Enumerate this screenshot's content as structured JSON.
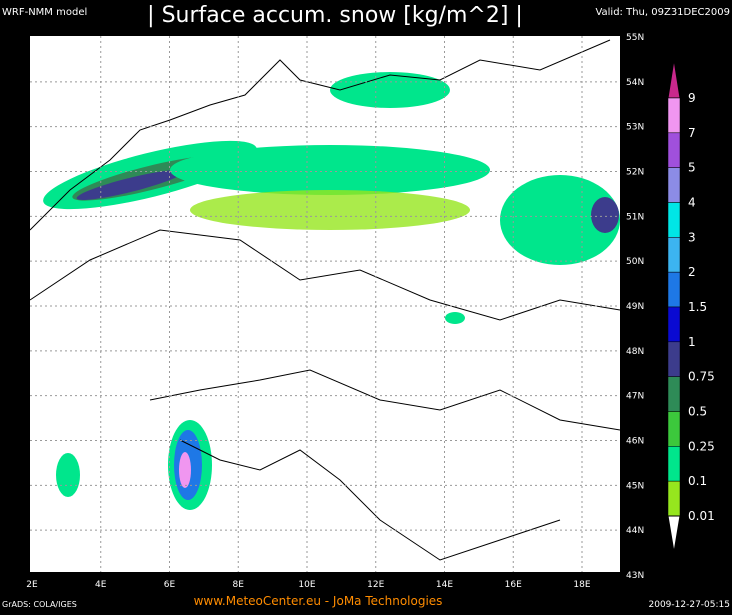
{
  "header": {
    "model": "WRF-NMM model",
    "title": "| Surface accum. snow [kg/m^2] |",
    "valid": "Valid: Thu, 09Z31DEC2009"
  },
  "map": {
    "lon_labels": [
      "2E",
      "4E",
      "6E",
      "8E",
      "10E",
      "12E",
      "14E",
      "16E",
      "18E"
    ],
    "lat_labels": [
      "55N",
      "54N",
      "53N",
      "52N",
      "51N",
      "50N",
      "49N",
      "48N",
      "47N",
      "46N",
      "45N",
      "44N",
      "43N"
    ]
  },
  "legend": {
    "labels": [
      "9",
      "7",
      "5",
      "4",
      "3",
      "2",
      "1.5",
      "1",
      "0.75",
      "0.5",
      "0.25",
      "0.1",
      "0.01"
    ],
    "colors": [
      "#c8288c",
      "#f096f0",
      "#a050dc",
      "#8c8ce6",
      "#00e6e6",
      "#3cb4f0",
      "#1e78e6",
      "#0a0ad2",
      "#3c3c8c",
      "#2e8b57",
      "#3cc83c",
      "#00e68c",
      "#96e61e",
      "#ffffff"
    ]
  },
  "footer": {
    "left": "GrADS: COLA/IGES",
    "center": "www.MeteoCenter.eu  -  JoMa Technologies",
    "right": "2009-12-27-05:15"
  }
}
